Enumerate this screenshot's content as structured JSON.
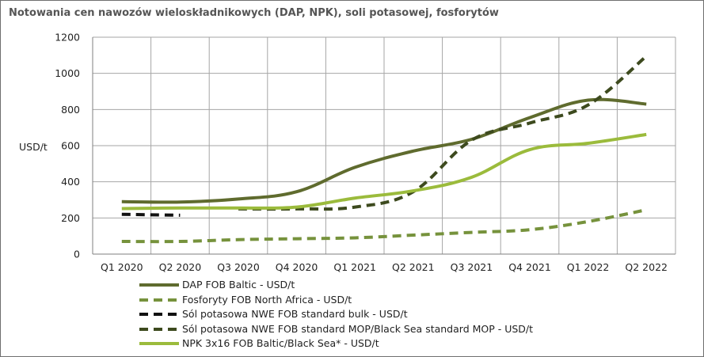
{
  "chart_data": {
    "type": "line",
    "title": "Notowania cen nawozów wieloskładnikowych (DAP, NPK), soli potasowej, fosforytów",
    "ylabel": "USD/t",
    "xlabel": "",
    "ylim": [
      0,
      1200
    ],
    "yticks": [
      "0",
      "200",
      "400",
      "600",
      "800",
      "1000",
      "1200"
    ],
    "categories": [
      "Q1 2020",
      "Q2 2020",
      "Q3 2020",
      "Q4 2020",
      "Q1 2021",
      "Q2 2021",
      "Q3 2021",
      "Q4 2021",
      "Q1 2022",
      "Q2 2022"
    ],
    "grid": true,
    "legend_position": "bottom",
    "series": [
      {
        "name": "DAP FOB Baltic - USD/t",
        "color": "#5f6b2e",
        "dash": "solid",
        "values": [
          290,
          288,
          305,
          345,
          480,
          570,
          635,
          755,
          852,
          830
        ]
      },
      {
        "name": "Fosforyty FOB North Africa - USD/t",
        "color": "#76923c",
        "dash": "dashed",
        "values": [
          70,
          70,
          80,
          85,
          90,
          105,
          120,
          135,
          180,
          245
        ]
      },
      {
        "name": "Sól potasowa  NWE FOB standard  bulk - USD/t",
        "color": "#111111",
        "dash": "dashed",
        "values": [
          220,
          215,
          null,
          null,
          null,
          null,
          null,
          null,
          null,
          null
        ]
      },
      {
        "name": "Sól potasowa  NWE FOB standard  MOP/Black Sea standard MOP - USD/t",
        "color": "#3d4a1e",
        "dash": "dashed",
        "values": [
          null,
          null,
          250,
          250,
          260,
          345,
          630,
          725,
          825,
          1095
        ]
      },
      {
        "name": "NPK 3x16 FOB Baltic/Black Sea* - USD/t",
        "color": "#9bbb3c",
        "dash": "solid",
        "values": [
          252,
          255,
          255,
          260,
          310,
          350,
          425,
          578,
          613,
          662
        ]
      }
    ]
  }
}
